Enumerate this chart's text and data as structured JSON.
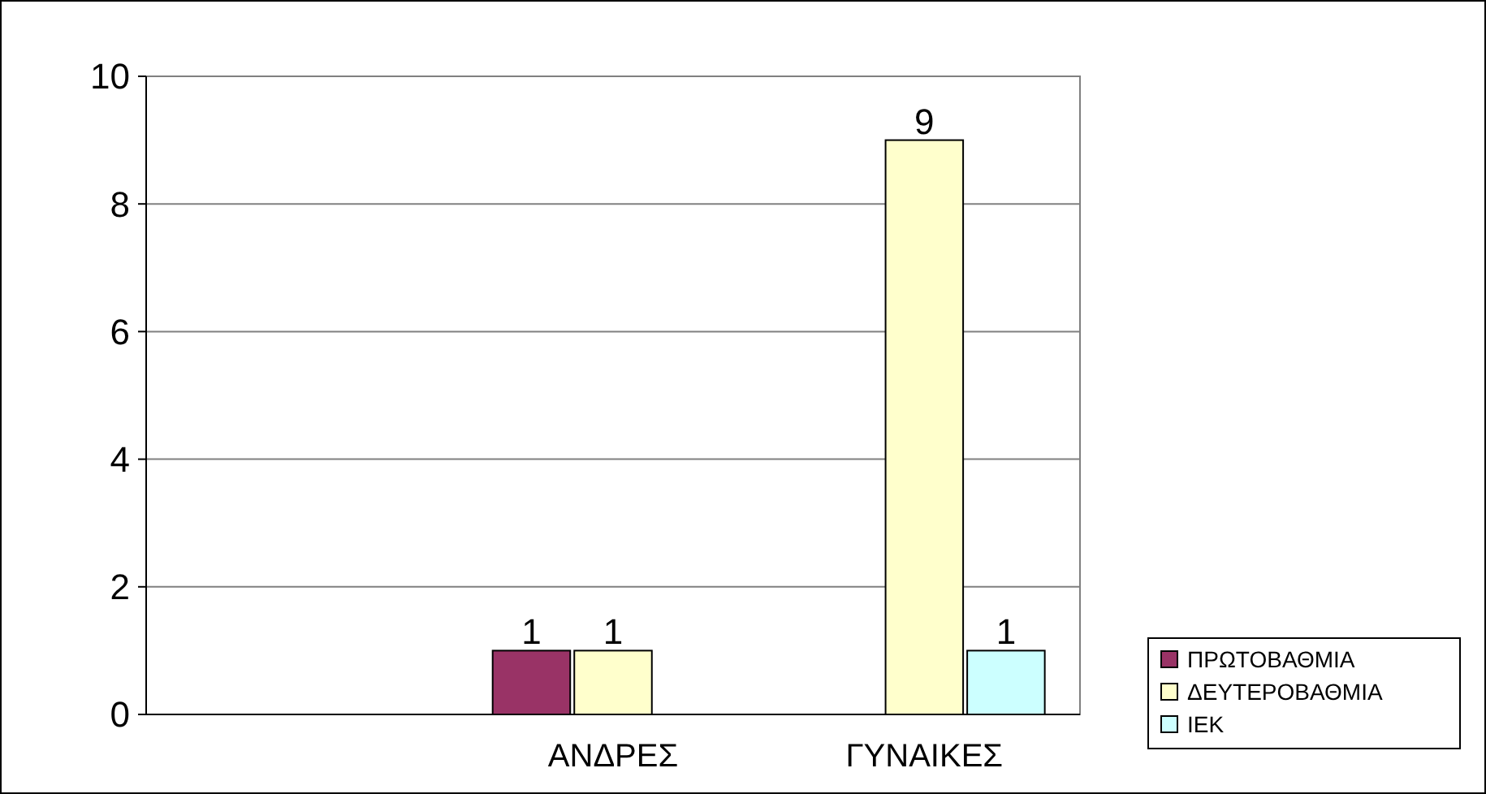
{
  "chart_data": {
    "type": "bar",
    "categories": [
      null,
      "ΑΝΔΡΕΣ",
      "ΓΥΝΑΙΚΕΣ"
    ],
    "series": [
      {
        "name": "ΠΡΩΤΟΒΑΘΜΙΑ",
        "color": "#993366",
        "values": [
          null,
          1,
          null
        ]
      },
      {
        "name": "ΔΕΥΤΕΡΟΒΑΘΜΙΑ",
        "color": "#ffffcc",
        "values": [
          null,
          1,
          9
        ]
      },
      {
        "name": "ΙΕΚ",
        "color": "#ccffff",
        "values": [
          null,
          null,
          1
        ]
      }
    ],
    "ylim": [
      0,
      10
    ],
    "yticks": [
      0,
      2,
      4,
      6,
      8,
      10
    ],
    "grid": "y",
    "legend": "right",
    "data_labels": true
  }
}
